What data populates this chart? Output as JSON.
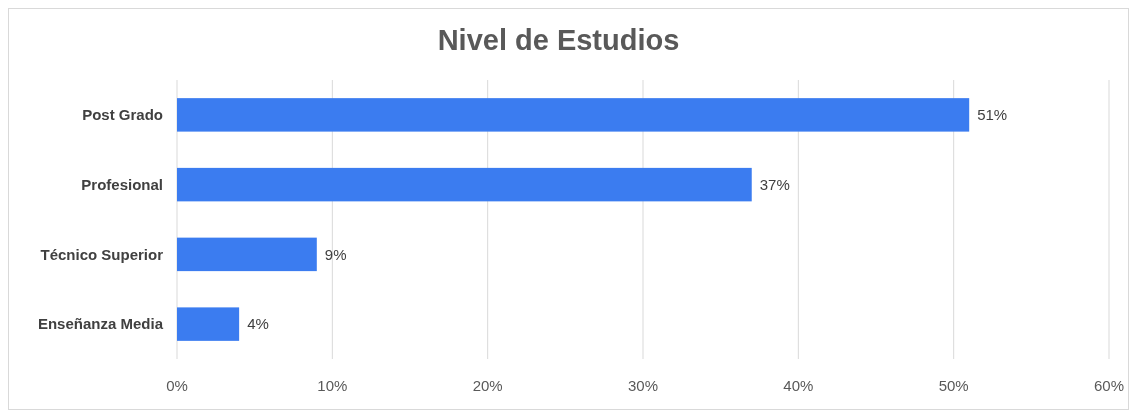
{
  "chart_data": {
    "type": "bar",
    "title": "Nivel de Estudios",
    "orientation": "horizontal",
    "categories": [
      "Post Grado",
      "Profesional",
      "Técnico Superior",
      "Enseñanza Media"
    ],
    "values": [
      51,
      37,
      9,
      4
    ],
    "color": "#3b7cf0",
    "value_labels": [
      "51%",
      "37%",
      "9%",
      "4%"
    ],
    "xlim": [
      0,
      60
    ],
    "xticks": [
      {
        "value": 0,
        "label": "0%"
      },
      {
        "value": 10,
        "label": "10%"
      },
      {
        "value": 20,
        "label": "20%"
      },
      {
        "value": 30,
        "label": "30%"
      },
      {
        "value": 40,
        "label": "40%"
      },
      {
        "value": 50,
        "label": "50%"
      },
      {
        "value": 60,
        "label": "60%"
      }
    ],
    "grid": "x"
  }
}
